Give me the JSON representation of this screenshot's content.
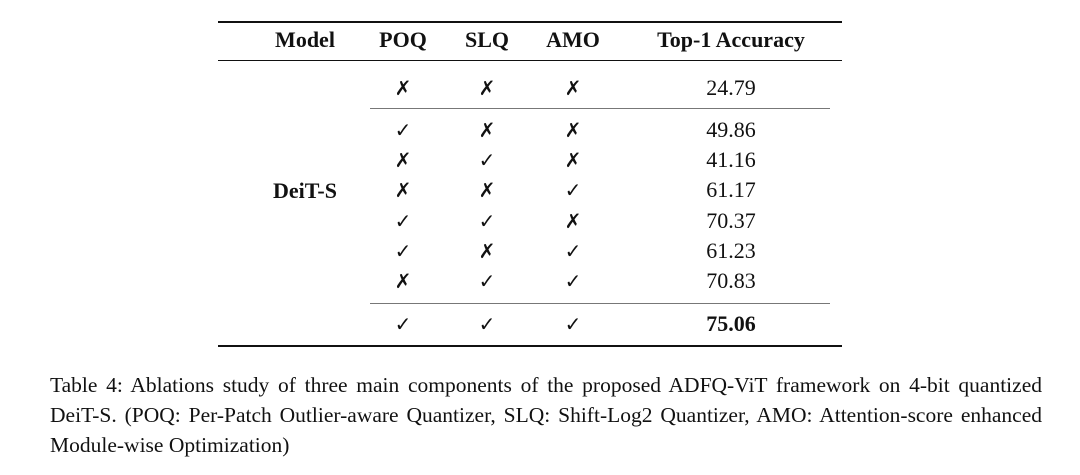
{
  "table": {
    "headers": [
      "Model",
      "POQ",
      "SLQ",
      "AMO",
      "Top-1 Accuracy"
    ],
    "model": "DeiT-S",
    "groups": [
      [
        [
          "✗",
          "✗",
          "✗",
          "24.79"
        ]
      ],
      [
        [
          "✓",
          "✗",
          "✗",
          "49.86"
        ],
        [
          "✗",
          "✓",
          "✗",
          "41.16"
        ],
        [
          "✗",
          "✗",
          "✓",
          "61.17"
        ],
        [
          "✓",
          "✓",
          "✗",
          "70.37"
        ],
        [
          "✓",
          "✗",
          "✓",
          "61.23"
        ],
        [
          "✗",
          "✓",
          "✓",
          "70.83"
        ]
      ],
      [
        [
          "✓",
          "✓",
          "✓",
          "75.06"
        ]
      ]
    ]
  },
  "caption": "Table 4: Ablations study of three main components of the proposed ADFQ-ViT framework on 4-bit quantized DeiT-S. (POQ: Per-Patch Outlier-aware Quantizer, SLQ: Shift-Log2 Quantizer, AMO: Attention-score enhanced Module-wise Optimization)"
}
